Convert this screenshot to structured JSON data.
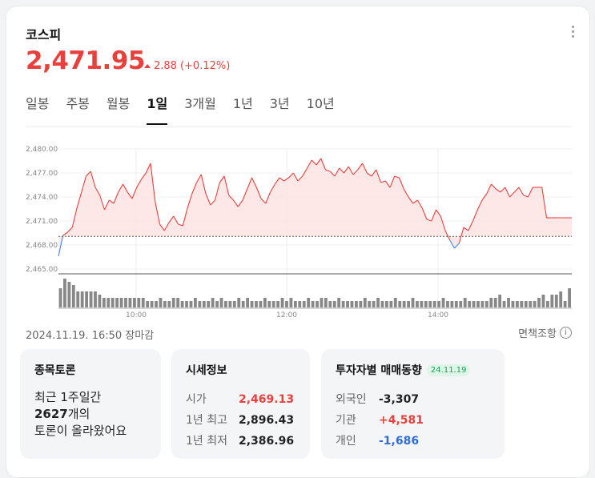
{
  "header": {
    "title": "코스피",
    "price": "2,471.95",
    "change": "2.88",
    "change_pct": "(+0.12%)",
    "up_color": "#e8413d"
  },
  "tabs": [
    {
      "label": "일봉",
      "active": false
    },
    {
      "label": "주봉",
      "active": false
    },
    {
      "label": "월봉",
      "active": false
    },
    {
      "label": "1일",
      "active": true
    },
    {
      "label": "3개월",
      "active": false
    },
    {
      "label": "1년",
      "active": false
    },
    {
      "label": "3년",
      "active": false
    },
    {
      "label": "10년",
      "active": false
    }
  ],
  "chart_data": {
    "type": "area",
    "y_ticks": [
      "2,480.00",
      "2,477.00",
      "2,474.00",
      "2,471.00",
      "2,468.00",
      "2,465.00"
    ],
    "ylim": [
      2465,
      2480
    ],
    "x_ticks": [
      "10:00",
      "12:00",
      "14:00"
    ],
    "prev_close": 2469.07,
    "series": [
      {
        "values": [
          2466.6,
          2469.2,
          2469.6,
          2470.2,
          2472.6,
          2474.6,
          2476.6,
          2477.2,
          2475.2,
          2474.2,
          2472.4,
          2473.6,
          2473.2,
          2474.6,
          2475.6,
          2474.6,
          2473.8,
          2475.2,
          2476.2,
          2477.0,
          2478.2,
          2473.4,
          2470.6,
          2469.8,
          2470.8,
          2471.6,
          2470.6,
          2470.4,
          2472.6,
          2474.4,
          2475.8,
          2476.8,
          2474.4,
          2473.0,
          2473.6,
          2475.8,
          2476.6,
          2474.2,
          2473.6,
          2472.8,
          2473.6,
          2475.0,
          2476.4,
          2475.2,
          2473.8,
          2473.2,
          2474.6,
          2475.6,
          2476.4,
          2476.0,
          2476.4,
          2477.0,
          2476.0,
          2476.6,
          2477.6,
          2478.6,
          2478.0,
          2478.8,
          2477.4,
          2477.2,
          2476.6,
          2477.6,
          2477.0,
          2477.8,
          2476.8,
          2477.4,
          2478.2,
          2477.0,
          2476.6,
          2477.4,
          2475.8,
          2476.0,
          2475.2,
          2476.6,
          2476.4,
          2475.0,
          2474.0,
          2473.2,
          2473.6,
          2472.6,
          2471.2,
          2471.0,
          2472.4,
          2471.6,
          2469.8,
          2468.6,
          2467.6,
          2468.2,
          2470.2,
          2469.8,
          2471.0,
          2472.4,
          2473.6,
          2474.4,
          2475.6,
          2475.0,
          2474.6,
          2475.2,
          2474.0,
          2474.6,
          2475.2,
          2474.2,
          2474.0,
          2475.2,
          2475.2,
          2475.2,
          2471.4,
          2471.4,
          2471.4
        ]
      }
    ],
    "volume": [
      6,
      9,
      8,
      7,
      5,
      5,
      5,
      5,
      5,
      4,
      3,
      3,
      3,
      3,
      3,
      3,
      3,
      3,
      3,
      3,
      2,
      2,
      2,
      3,
      2,
      2,
      3,
      3,
      2,
      2,
      2,
      3,
      2,
      2,
      2,
      3,
      2,
      3,
      2,
      2,
      2,
      3,
      2,
      3,
      2,
      2,
      2,
      3,
      2,
      2,
      2,
      3,
      2,
      3,
      2,
      2,
      2,
      3,
      2,
      2,
      3,
      3,
      2,
      2,
      3,
      2,
      2,
      2,
      2,
      2,
      3,
      2,
      2,
      3,
      2,
      2,
      2,
      3,
      2,
      2,
      2,
      3,
      2,
      2,
      2,
      2,
      2,
      2,
      3,
      2,
      2,
      2,
      2,
      3,
      2,
      2,
      2,
      2,
      2,
      3,
      3,
      4,
      2,
      3,
      2,
      2,
      2,
      2,
      2,
      2,
      3,
      4,
      2,
      4,
      4,
      5,
      2,
      6
    ]
  },
  "status": {
    "datetime": "2024.11.19. 16:50 장마감",
    "disclaimer": "면책조항",
    "info_icon": "ⓘ"
  },
  "discussion": {
    "title": "종목토론",
    "line1": "최근 1주일간",
    "count": "2627",
    "line2_suffix": "개의",
    "line3": "토론이 올라왔어요"
  },
  "market_info": {
    "title": "시세정보",
    "rows": [
      {
        "label": "시가",
        "value": "2,469.13"
      },
      {
        "label": "1년 최고",
        "value": "2,896.43"
      },
      {
        "label": "1년 최저",
        "value": "2,386.96"
      }
    ]
  },
  "investor": {
    "title": "투자자별 매매동향",
    "date_badge": "24.11.19",
    "rows": [
      {
        "label": "외국인",
        "value": "-3,307"
      },
      {
        "label": "기관",
        "value": "+4,581"
      },
      {
        "label": "개인",
        "value": "-1,686"
      }
    ]
  }
}
